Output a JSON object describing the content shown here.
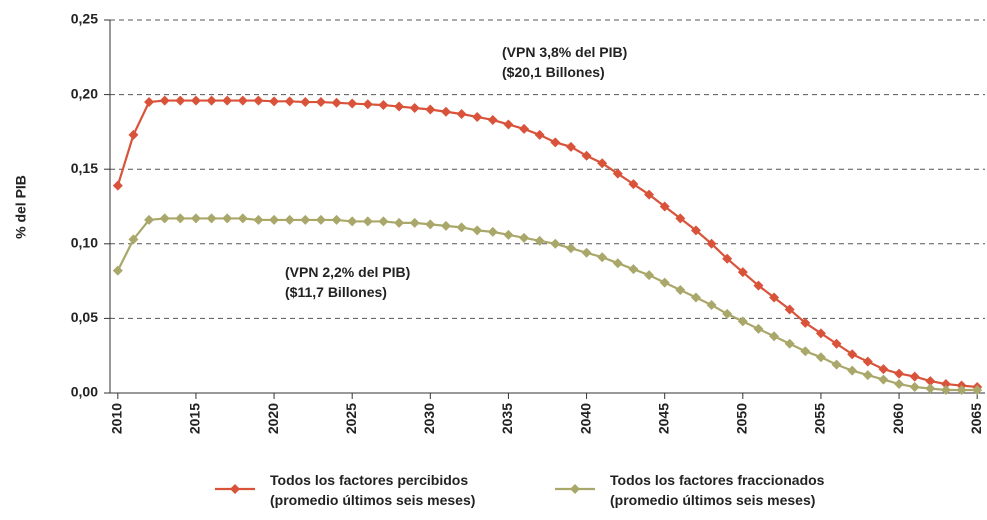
{
  "chart_data": {
    "type": "line",
    "y_label": "% del PIB",
    "x": [
      2010,
      2011,
      2012,
      2013,
      2014,
      2015,
      2016,
      2017,
      2018,
      2019,
      2020,
      2021,
      2022,
      2023,
      2024,
      2025,
      2026,
      2027,
      2028,
      2029,
      2030,
      2031,
      2032,
      2033,
      2034,
      2035,
      2036,
      2037,
      2038,
      2039,
      2040,
      2041,
      2042,
      2043,
      2044,
      2045,
      2046,
      2047,
      2048,
      2049,
      2050,
      2051,
      2052,
      2053,
      2054,
      2055,
      2056,
      2057,
      2058,
      2059,
      2060,
      2061,
      2062,
      2063,
      2064,
      2065
    ],
    "series": [
      {
        "name": "Todos los factores percibidos\n(promedio últimos seis meses)",
        "color": "#d9533a",
        "values": [
          0.139,
          0.173,
          0.195,
          0.196,
          0.196,
          0.196,
          0.196,
          0.196,
          0.196,
          0.196,
          0.1955,
          0.1955,
          0.195,
          0.195,
          0.1945,
          0.194,
          0.1935,
          0.193,
          0.192,
          0.191,
          0.19,
          0.1885,
          0.187,
          0.185,
          0.183,
          0.18,
          0.177,
          0.173,
          0.168,
          0.165,
          0.159,
          0.154,
          0.147,
          0.14,
          0.133,
          0.125,
          0.117,
          0.109,
          0.1,
          0.09,
          0.081,
          0.072,
          0.064,
          0.056,
          0.047,
          0.04,
          0.033,
          0.026,
          0.021,
          0.016,
          0.013,
          0.011,
          0.008,
          0.006,
          0.005,
          0.004
        ]
      },
      {
        "name": "Todos los factores fraccionados\n(promedio últimos seis meses)",
        "color": "#a9a86a",
        "values": [
          0.082,
          0.103,
          0.116,
          0.117,
          0.117,
          0.117,
          0.117,
          0.117,
          0.117,
          0.116,
          0.116,
          0.116,
          0.116,
          0.116,
          0.116,
          0.115,
          0.115,
          0.115,
          0.114,
          0.114,
          0.113,
          0.112,
          0.111,
          0.109,
          0.108,
          0.106,
          0.104,
          0.102,
          0.1,
          0.097,
          0.094,
          0.091,
          0.087,
          0.083,
          0.079,
          0.074,
          0.069,
          0.064,
          0.059,
          0.053,
          0.048,
          0.043,
          0.038,
          0.033,
          0.028,
          0.024,
          0.019,
          0.015,
          0.012,
          0.009,
          0.006,
          0.004,
          0.003,
          0.002,
          0.002,
          0.002
        ]
      }
    ],
    "annotations": [
      "(VPN 3,8% del PIB)\n($20,1 Billones)",
      "(VPN 2,2% del PIB)\n($11,7 Billones)"
    ],
    "xlim": [
      2009.5,
      2065.5
    ],
    "xticks": [
      2010,
      2015,
      2020,
      2025,
      2030,
      2035,
      2040,
      2045,
      2050,
      2055,
      2060,
      2065
    ],
    "ylim": [
      0,
      0.25
    ],
    "yticks": [
      {
        "value": 0,
        "label": "0,00"
      },
      {
        "value": 0.05,
        "label": "0,05"
      },
      {
        "value": 0.1,
        "label": "0,10"
      },
      {
        "value": 0.15,
        "label": "0,15"
      },
      {
        "value": 0.2,
        "label": "0,20"
      },
      {
        "value": 0.25,
        "label": "0,25"
      }
    ],
    "grid": true
  }
}
